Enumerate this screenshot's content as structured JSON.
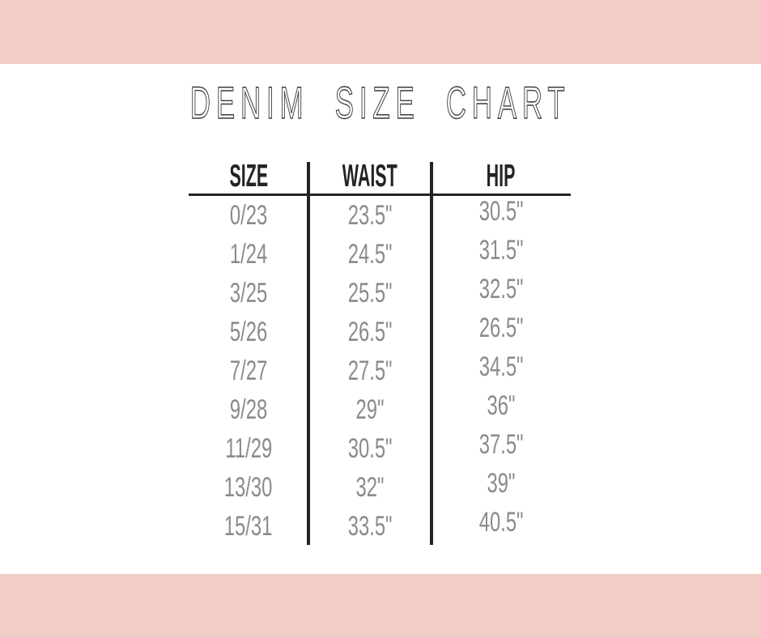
{
  "title": "DENIM SIZE CHART",
  "colors": {
    "band_pink": "#f0cec7",
    "title_text": "#3a3a3a",
    "header_text": "#262223",
    "divider_line": "#262223",
    "data_text": "#8a8b8d",
    "background": "#ffffff"
  },
  "chart_data": {
    "type": "table",
    "title": "DENIM SIZE CHART",
    "columns": [
      "SIZE",
      "WAIST",
      "HIP"
    ],
    "rows": [
      [
        "0/23",
        "23.5\"",
        "30.5\""
      ],
      [
        "1/24",
        "24.5\"",
        "31.5\""
      ],
      [
        "3/25",
        "25.5\"",
        "32.5\""
      ],
      [
        "5/26",
        "26.5\"",
        "26.5\""
      ],
      [
        "7/27",
        "27.5\"",
        "34.5\""
      ],
      [
        "9/28",
        "29\"",
        "36\""
      ],
      [
        "11/29",
        "30.5\"",
        "37.5\""
      ],
      [
        "13/30",
        "32\"",
        "39\""
      ],
      [
        "15/31",
        "33.5\"",
        "40.5\""
      ]
    ],
    "layout": {
      "legend": "none",
      "grid": "column-dividers-and-header-rule"
    }
  }
}
